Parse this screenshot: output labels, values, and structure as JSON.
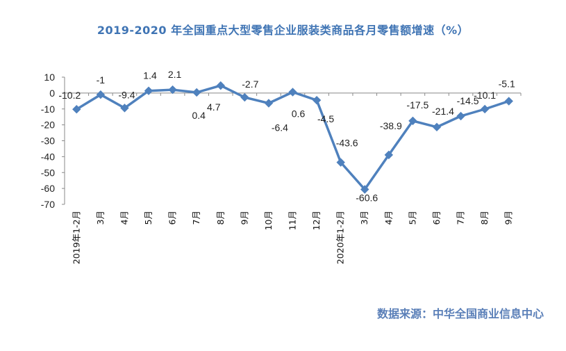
{
  "title": "2019-2020 年全国重点大型零售企业服装类商品各月零售额增速（%）",
  "source": "数据来源：中华全国商业信息中心",
  "chart_data": {
    "type": "line",
    "title": "2019-2020 年全国重点大型零售企业服装类商品各月零售额增速（%）",
    "xlabel": "",
    "ylabel": "",
    "categories": [
      "2019年1-2月",
      "3月",
      "4月",
      "5月",
      "6月",
      "7月",
      "8月",
      "9月",
      "10月",
      "11月",
      "12月",
      "2020年1-2月",
      "3月",
      "4月",
      "5月",
      "6月",
      "7月",
      "8月",
      "9月"
    ],
    "series": [
      {
        "values": [
          -10.2,
          -1,
          -9.4,
          1.4,
          2.1,
          0.4,
          4.7,
          -2.7,
          -6.4,
          0.6,
          -4.5,
          -43.6,
          -60.6,
          -38.9,
          -17.5,
          -21.4,
          -14.5,
          -10.1,
          -5.1
        ],
        "labels": [
          "-10.2",
          "-1",
          "-9.4",
          "1.4",
          "2.1",
          "0.4",
          "4.7",
          "-2.7",
          "-6.4",
          "0.6",
          "-4.5",
          "-43.6",
          "-60.6",
          "-38.9",
          "-17.5",
          "-21.4",
          "-14.5",
          "-10.1",
          "-5.1"
        ],
        "color": "#4f81bd"
      }
    ],
    "ylim": [
      -70,
      10
    ],
    "yticks": [
      10,
      0,
      -10,
      -20,
      -30,
      -40,
      -50,
      -60,
      -70
    ],
    "grid": false,
    "legend": "none",
    "axis_color": "#888888"
  }
}
